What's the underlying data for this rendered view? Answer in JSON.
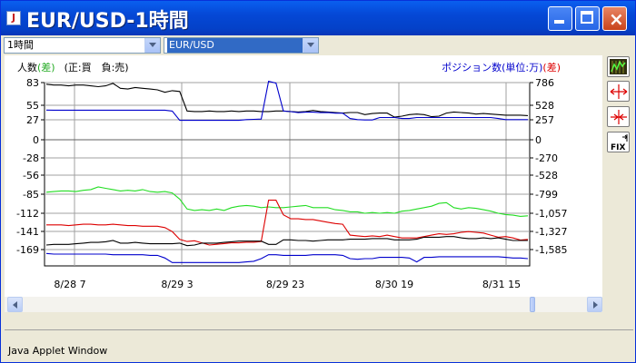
{
  "window": {
    "title": "EUR/USD-1時間",
    "status_text": "Java Applet Window"
  },
  "controls": {
    "timeframe_selected": "1時間",
    "pair_selected": "EUR/USD"
  },
  "colors": {
    "black": "#000000",
    "blue": "#0000CC",
    "green": "#22DD22",
    "red": "#DD0000",
    "grid": "#A0A0A0"
  },
  "chart_data": {
    "type": "line",
    "left_axis_label_prefix": "人数",
    "left_axis_label_diff": "(差)",
    "left_axis_label_note": "(正:買　負:売)",
    "right_axis_label": "ポジション数(単位:万)",
    "right_axis_label_diff": "(差)",
    "left_ticks": [
      "83",
      "55",
      "27",
      "0",
      "-28",
      "-56",
      "-85",
      "-112",
      "-141",
      "-169"
    ],
    "right_ticks": [
      "786",
      "528",
      "257",
      "0",
      "-270",
      "-528",
      "-799",
      "-1,057",
      "-1,327",
      "-1,585"
    ],
    "x_ticks": [
      "8/28 7",
      "8/29 3",
      "8/29 23",
      "8/30 19",
      "8/31 15"
    ],
    "ylim_left": [
      -180,
      83
    ],
    "grid": true,
    "series": [
      {
        "color": "black",
        "axis": "left",
        "values": [
          81,
          80,
          80,
          79,
          80,
          80,
          79,
          78,
          79,
          82,
          76,
          75,
          77,
          76,
          75,
          74,
          71,
          73,
          72,
          44,
          43,
          43,
          44,
          43,
          43,
          44,
          43,
          44,
          44,
          43,
          43,
          44,
          44,
          43,
          42,
          43,
          45,
          43,
          42,
          41,
          40,
          41,
          41,
          37,
          39,
          40,
          40,
          32,
          34,
          37,
          38,
          37,
          33,
          34,
          40,
          42,
          41,
          40,
          38,
          39,
          38,
          37,
          36,
          36,
          36,
          35
        ]
      },
      {
        "color": "blue",
        "axis": "right",
        "values": [
          439,
          437,
          437,
          437,
          437,
          437,
          437,
          437,
          437,
          437,
          437,
          437,
          437,
          437,
          437,
          437,
          437,
          420,
          250,
          250,
          250,
          250,
          250,
          250,
          250,
          250,
          250,
          260,
          265,
          270,
          800,
          780,
          420,
          410,
          390,
          400,
          400,
          390,
          395,
          380,
          380,
          280,
          260,
          255,
          255,
          300,
          300,
          300,
          280,
          280,
          300,
          300,
          300,
          300,
          300,
          300,
          300,
          300,
          300,
          300,
          300,
          280,
          260,
          260,
          260,
          260
        ]
      },
      {
        "color": "green",
        "axis": "left",
        "values": [
          -82,
          -81,
          -80,
          -80,
          -81,
          -79,
          -78,
          -74,
          -76,
          -78,
          -80,
          -79,
          -80,
          -78,
          -81,
          -82,
          -81,
          -83,
          -92,
          -106,
          -108,
          -107,
          -108,
          -106,
          -108,
          -104,
          -102,
          -101,
          -102,
          -104,
          -103,
          -104,
          -104,
          -103,
          -102,
          -101,
          -104,
          -104,
          -104,
          -107,
          -108,
          -110,
          -110,
          -112,
          -111,
          -112,
          -111,
          -112,
          -109,
          -108,
          -106,
          -104,
          -102,
          -98,
          -97,
          -104,
          -106,
          -104,
          -105,
          -107,
          -109,
          -112,
          -114,
          -115,
          -117,
          -116
        ]
      },
      {
        "color": "red",
        "axis": "right",
        "values": [
          -1230,
          -1230,
          -1230,
          -1240,
          -1230,
          -1220,
          -1220,
          -1230,
          -1230,
          -1220,
          -1230,
          -1240,
          -1240,
          -1250,
          -1250,
          -1250,
          -1270,
          -1330,
          -1440,
          -1470,
          -1460,
          -1490,
          -1520,
          -1510,
          -1500,
          -1490,
          -1490,
          -1480,
          -1480,
          -1470,
          -880,
          -880,
          -1080,
          -1140,
          -1140,
          -1150,
          -1150,
          -1170,
          -1190,
          -1210,
          -1220,
          -1380,
          -1390,
          -1400,
          -1390,
          -1400,
          -1380,
          -1400,
          -1420,
          -1420,
          -1420,
          -1400,
          -1380,
          -1360,
          -1370,
          -1360,
          -1340,
          -1330,
          -1340,
          -1350,
          -1380,
          -1410,
          -1400,
          -1420,
          -1450,
          -1440
        ]
      },
      {
        "color": "black",
        "axis": "left",
        "values": [
          -162,
          -161,
          -161,
          -161,
          -160,
          -159,
          -158,
          -158,
          -157,
          -155,
          -159,
          -159,
          -158,
          -159,
          -160,
          -160,
          -160,
          -160,
          -159,
          -163,
          -162,
          -159,
          -159,
          -159,
          -158,
          -157,
          -156,
          -156,
          -156,
          -156,
          -161,
          -161,
          -154,
          -154,
          -155,
          -155,
          -156,
          -155,
          -154,
          -154,
          -154,
          -153,
          -153,
          -153,
          -152,
          -152,
          -152,
          -154,
          -154,
          -154,
          -153,
          -150,
          -150,
          -150,
          -149,
          -149,
          -151,
          -152,
          -152,
          -151,
          -152,
          -151,
          -153,
          -155,
          -155,
          -155
        ]
      },
      {
        "color": "blue",
        "axis": "left",
        "values": [
          -175,
          -176,
          -176,
          -176,
          -176,
          -176,
          -176,
          -176,
          -176,
          -177,
          -177,
          -177,
          -177,
          -177,
          -178,
          -178,
          -182,
          -189,
          -189,
          -189,
          -189,
          -189,
          -189,
          -189,
          -189,
          -189,
          -189,
          -188,
          -187,
          -183,
          -177,
          -177,
          -178,
          -178,
          -178,
          -178,
          -177,
          -177,
          -177,
          -177,
          -178,
          -183,
          -184,
          -183,
          -183,
          -181,
          -181,
          -181,
          -181,
          -182,
          -188,
          -181,
          -181,
          -180,
          -180,
          -180,
          -180,
          -180,
          -180,
          -180,
          -180,
          -180,
          -181,
          -182,
          -182,
          -183
        ]
      }
    ]
  },
  "tools": {
    "icons": [
      "candle-chart-icon",
      "expand-horizontal-icon",
      "compress-horizontal-icon",
      "fix-icon"
    ],
    "fix_label": "FIX"
  }
}
